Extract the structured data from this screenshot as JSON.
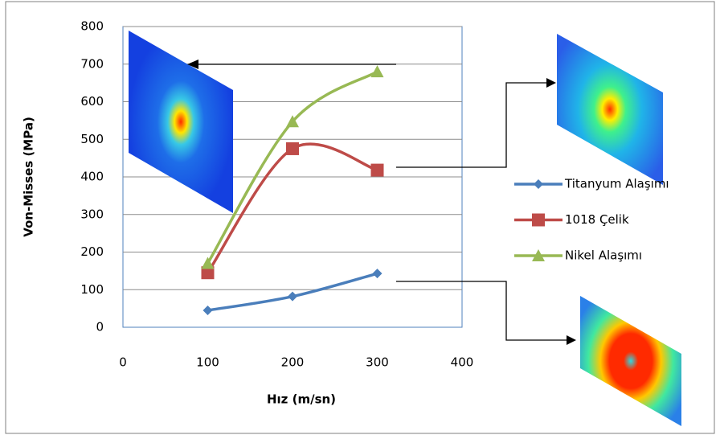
{
  "chart_data": {
    "type": "line",
    "smooth": true,
    "x_label": "Hız (m/sn)",
    "y_label": "Von-Misses (MPa)",
    "xlim": [
      0,
      400
    ],
    "xticks": [
      0,
      100,
      200,
      300,
      400
    ],
    "ylim": [
      0,
      800
    ],
    "yticks": [
      0,
      100,
      200,
      300,
      400,
      500,
      600,
      700,
      800
    ],
    "grid": true,
    "legend": "right",
    "x": [
      100,
      200,
      300
    ],
    "series": [
      {
        "name": "Titanyum Alaşımı",
        "color": "#4a7ebb",
        "marker": "diamond",
        "values": [
          45,
          82,
          143
        ]
      },
      {
        "name": "1018 Çelik",
        "color": "#be4b48",
        "marker": "square",
        "values": [
          145,
          475,
          418
        ]
      },
      {
        "name": "Nikel Alaşımı",
        "color": "#98b954",
        "marker": "triangle",
        "values": [
          170,
          547,
          680
        ]
      }
    ]
  }
}
